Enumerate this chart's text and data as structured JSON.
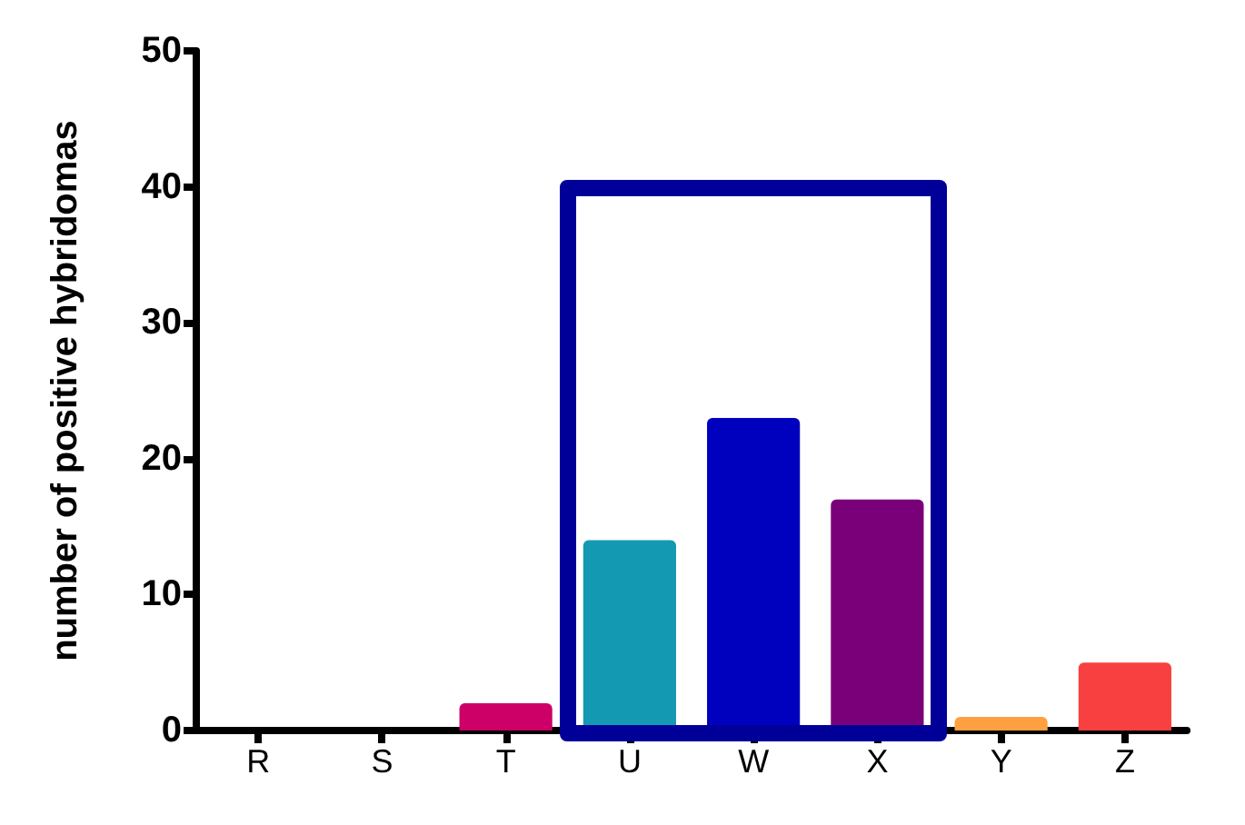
{
  "chart_data": {
    "type": "bar",
    "ylabel": "number of positive hybridomas",
    "categories": [
      "R",
      "S",
      "T",
      "U",
      "W",
      "X",
      "Y",
      "Z"
    ],
    "values": [
      0,
      0,
      2,
      14,
      23,
      17,
      1,
      5
    ],
    "colors": [
      "#000000",
      "#000000",
      "#cc0066",
      "#1499b2",
      "#0000bf",
      "#7a007a",
      "#ffa040",
      "#f84040"
    ],
    "ylim": [
      0,
      50
    ],
    "yticks": [
      0,
      10,
      20,
      30,
      40,
      50
    ],
    "grid": false
  }
}
